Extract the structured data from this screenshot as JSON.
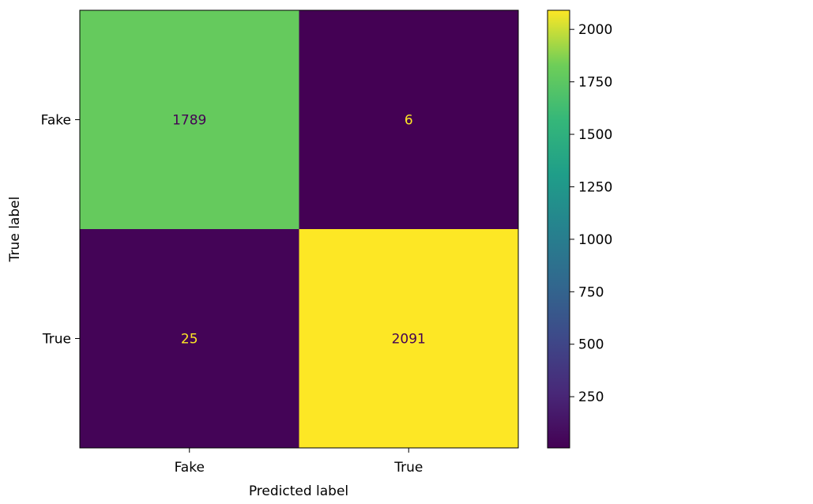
{
  "chart_data": {
    "type": "heatmap",
    "title": "",
    "xlabel": "Predicted label",
    "ylabel": "True label",
    "x_categories": [
      "Fake",
      "True"
    ],
    "y_categories": [
      "Fake",
      "True"
    ],
    "values": [
      [
        1789,
        6
      ],
      [
        25,
        2091
      ]
    ],
    "colormap": "viridis",
    "color_range": [
      6,
      2091
    ],
    "colorbar_ticks": [
      250,
      500,
      750,
      1000,
      1250,
      1500,
      1750,
      2000
    ],
    "colorbar_tick_labels": [
      "250",
      "500",
      "750",
      "1000",
      "1250",
      "1500",
      "1750",
      "2000"
    ],
    "text_color_dark_bg": "#fde725",
    "text_color_light_bg": "#440154",
    "grid": false,
    "legend": "colorbar-right"
  }
}
